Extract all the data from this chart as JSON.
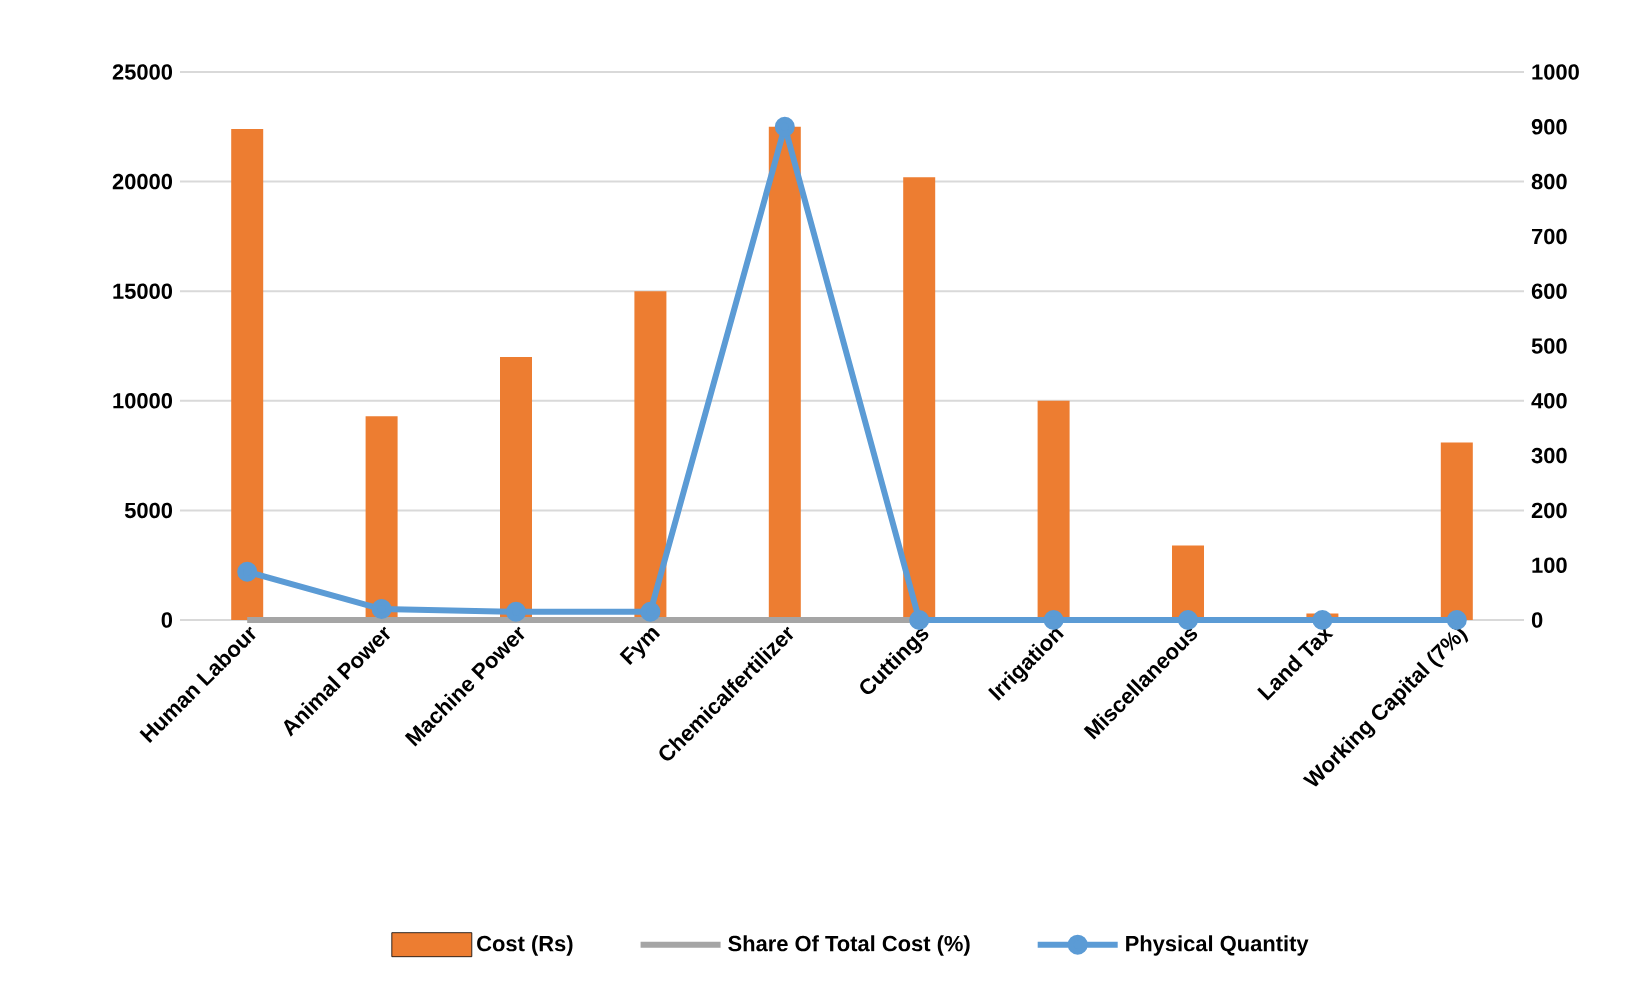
{
  "chart_data": {
    "type": "bar",
    "categories": [
      "Human Labour",
      "Animal Power",
      "Machine Power",
      "Fym",
      "Chemicalfertilizer",
      "Cuttings",
      "Irrigation",
      "Miscellaneous",
      "Land Tax",
      "Working Capital (7%)"
    ],
    "series": [
      {
        "name": "Cost (Rs)",
        "color": "#ed7d31",
        "values": [
          22400,
          9300,
          12000,
          15000,
          22500,
          20200,
          10000,
          3400,
          300,
          8100
        ]
      },
      {
        "name": "Share Of Total Cost (%)",
        "type": "line",
        "color": "#a5a5a5",
        "marker": "none",
        "values": [
          0,
          0,
          0,
          0,
          0,
          0,
          0,
          0,
          0,
          0
        ]
      },
      {
        "name": "Physical Quantity",
        "type": "line",
        "color": "#5b9bd5",
        "marker": "circle",
        "axis": "y2",
        "values": [
          88,
          20,
          15,
          15,
          900,
          0,
          0,
          0,
          0,
          0
        ]
      }
    ],
    "ylim": [
      0,
      25000
    ],
    "yticks": [
      0,
      5000,
      10000,
      15000,
      20000,
      25000
    ],
    "y2lim": [
      0,
      1000
    ],
    "y2ticks": [
      0,
      100,
      200,
      300,
      400,
      500,
      600,
      700,
      800,
      900,
      1000
    ],
    "grid": "y",
    "legend": "bottom"
  }
}
